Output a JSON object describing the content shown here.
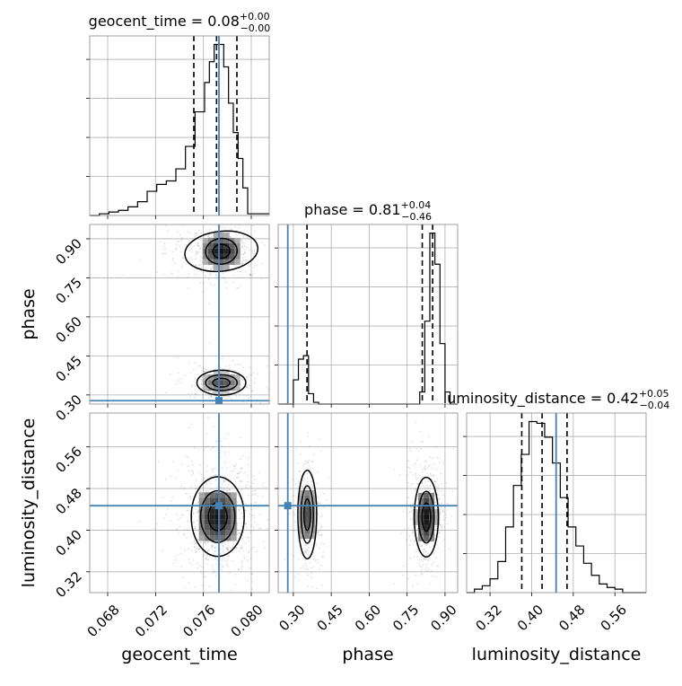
{
  "chart_data": {
    "type": "corner",
    "parameters": [
      "geocent_time",
      "phase",
      "luminosity_distance"
    ],
    "truth_color": "#4682b4",
    "hist_color": "#000000",
    "grid": true,
    "panels": [
      {
        "id": "geocent_time",
        "title_prefix": "geocent_time = ",
        "title_value": "0.08",
        "title_plus": "+0.00",
        "title_minus": "−0.00",
        "xlim": [
          0.0665,
          0.0815
        ],
        "x_ticks": [
          "0.068",
          "0.072",
          "0.076",
          "0.080"
        ],
        "x_tick_values": [
          0.068,
          0.072,
          0.076,
          0.08
        ],
        "xlabel": "geocent_time",
        "truth": 0.0773,
        "quantiles": [
          0.0752,
          0.0771,
          0.0788
        ],
        "bins": [
          0.0665,
          0.0673,
          0.0681,
          0.0689,
          0.0697,
          0.0705,
          0.0713,
          0.0721,
          0.0729,
          0.0737,
          0.0745,
          0.0753,
          0.0761,
          0.0765,
          0.0769,
          0.0773,
          0.0777,
          0.0781,
          0.0785,
          0.0789,
          0.0793,
          0.0797,
          0.0805,
          0.0815
        ],
        "counts": [
          0,
          1,
          2,
          3,
          5,
          8,
          14,
          18,
          20,
          27,
          40,
          60,
          77,
          89,
          99,
          99,
          86,
          65,
          48,
          33,
          16,
          1,
          1
        ]
      },
      {
        "id": "phase",
        "title_prefix": "phase = ",
        "title_value": "0.81",
        "title_plus": "+0.04",
        "title_minus": "−0.46",
        "xlim": [
          0.24,
          0.95
        ],
        "x_ticks": [
          "0.30",
          "0.45",
          "0.60",
          "0.75",
          "0.90"
        ],
        "x_tick_values": [
          0.3,
          0.45,
          0.6,
          0.75,
          0.9
        ],
        "xlabel": "phase",
        "truth": 0.278,
        "quantiles": [
          0.354,
          0.81,
          0.851
        ],
        "bins": [
          0.24,
          0.26,
          0.28,
          0.3,
          0.32,
          0.34,
          0.36,
          0.38,
          0.4,
          0.42,
          0.44,
          0.46,
          0.48,
          0.5,
          0.52,
          0.54,
          0.56,
          0.58,
          0.6,
          0.62,
          0.64,
          0.66,
          0.68,
          0.7,
          0.72,
          0.74,
          0.76,
          0.78,
          0.8,
          0.82,
          0.84,
          0.86,
          0.88,
          0.9,
          0.92,
          0.95
        ],
        "counts": [
          0,
          0,
          0,
          14,
          26,
          28,
          6,
          1,
          0,
          0,
          0,
          0,
          0,
          0,
          0,
          0,
          0,
          0,
          0,
          0,
          0,
          0,
          0,
          0,
          0,
          0,
          0,
          0,
          7,
          48,
          99,
          81,
          35,
          7,
          0
        ],
        "y_upper_override": 104
      },
      {
        "id": "luminosity_distance",
        "title_prefix": "luminosity_distance = ",
        "title_value": "0.42",
        "title_plus": "+0.05",
        "title_minus": "−0.04",
        "xlim": [
          0.275,
          0.62
        ],
        "x_ticks": [
          "0.32",
          "0.40",
          "0.48",
          "0.56"
        ],
        "x_tick_values": [
          0.32,
          0.4,
          0.48,
          0.56
        ],
        "xlabel": "luminosity_distance",
        "truth": 0.447,
        "quantiles": [
          0.381,
          0.42,
          0.468
        ],
        "bins": [
          0.275,
          0.29,
          0.305,
          0.32,
          0.335,
          0.35,
          0.365,
          0.38,
          0.395,
          0.41,
          0.425,
          0.44,
          0.455,
          0.47,
          0.485,
          0.5,
          0.515,
          0.53,
          0.545,
          0.56,
          0.575,
          0.59,
          0.605,
          0.62
        ],
        "counts": [
          0,
          2,
          4,
          8,
          18,
          38,
          62,
          80,
          99,
          98,
          90,
          75,
          55,
          38,
          27,
          17,
          10,
          5,
          3,
          2,
          0,
          0,
          0
        ]
      }
    ],
    "y_axes": [
      {
        "param": "phase",
        "ylabel": "phase",
        "ylim": [
          0.265,
          0.955
        ],
        "y_ticks": [
          "0.30",
          "0.45",
          "0.60",
          "0.75",
          "0.90"
        ],
        "y_tick_values": [
          0.3,
          0.45,
          0.6,
          0.75,
          0.9
        ],
        "truth": 0.278
      },
      {
        "param": "luminosity_distance",
        "ylabel": "luminosity_distance",
        "ylim": [
          0.28,
          0.625
        ],
        "y_ticks": [
          "0.32",
          "0.40",
          "0.48",
          "0.56"
        ],
        "y_tick_values": [
          0.32,
          0.4,
          0.48,
          0.56
        ],
        "truth": 0.447
      }
    ],
    "blobs_2d": [
      {
        "panel": "phase_vs_geocent_time",
        "cx": 0.0775,
        "cy": 0.852,
        "sx": 0.0012,
        "sy": 0.045,
        "weight": 0.55,
        "tilt": 0.35
      },
      {
        "panel": "phase_vs_geocent_time",
        "cx": 0.0775,
        "cy": 0.347,
        "sx": 0.0012,
        "sy": 0.028,
        "weight": 0.35,
        "tilt": 0.0
      },
      {
        "panel": "luminosity_distance_vs_geocent_time",
        "cx": 0.0772,
        "cy": 0.426,
        "sx": 0.0013,
        "sy": 0.045,
        "weight": 1.0,
        "tilt": 0.0
      },
      {
        "panel": "luminosity_distance_vs_phase",
        "cx": 0.355,
        "cy": 0.43,
        "sx": 0.022,
        "sy": 0.05,
        "weight": 0.35,
        "tilt": 0.0
      },
      {
        "panel": "luminosity_distance_vs_phase",
        "cx": 0.826,
        "cy": 0.425,
        "sx": 0.028,
        "sy": 0.045,
        "weight": 0.65,
        "tilt": 0.0
      }
    ]
  }
}
